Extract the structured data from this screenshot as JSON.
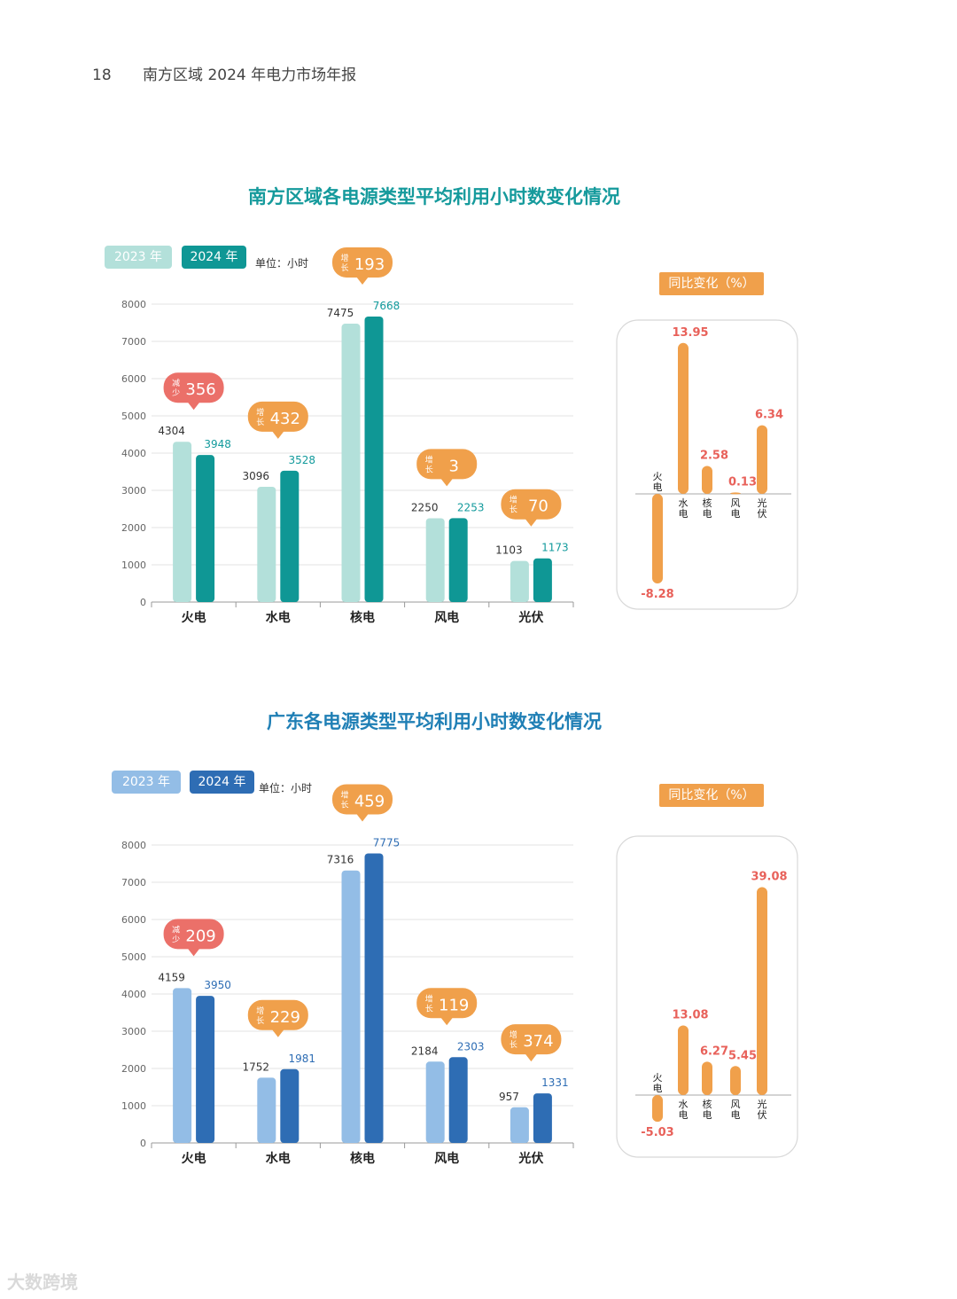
{
  "header": {
    "page_number": "18",
    "doc_title": "南方区域 2024 年电力市场年报"
  },
  "watermark": "大数跨境",
  "chart_data": [
    {
      "type": "bar",
      "title": "南方区域各电源类型平均利用小时数变化情况",
      "unit_label": "单位：小时",
      "categories": [
        "火电",
        "水电",
        "核电",
        "风电",
        "光伏"
      ],
      "series": [
        {
          "name": "2023 年",
          "values": [
            4304,
            3096,
            7475,
            2250,
            1103
          ],
          "color": "#b3e0da"
        },
        {
          "name": "2024 年",
          "values": [
            3948,
            3528,
            7668,
            2253,
            1173
          ],
          "color": "#0f9795"
        }
      ],
      "label_colors": [
        "#333333",
        "#129a9c"
      ],
      "ylim": [
        0,
        8000
      ],
      "yticks": [
        "0",
        "1000",
        "2000",
        "3000",
        "4000",
        "5000",
        "6000",
        "7000",
        "8000"
      ],
      "changes": [
        {
          "label": "减少",
          "value": "356",
          "color": "#eb7069"
        },
        {
          "label": "增长",
          "value": "432",
          "color": "#f0a04b"
        },
        {
          "label": "增长",
          "value": "193",
          "color": "#f0a04b"
        },
        {
          "label": "增长",
          "value": "3",
          "color": "#f0a04b"
        },
        {
          "label": "增长",
          "value": "70",
          "color": "#f0a04b"
        }
      ],
      "yoy": {
        "title": "同比变化（%）",
        "categories": [
          "火电",
          "水电",
          "核电",
          "风电",
          "光伏"
        ],
        "values": [
          -8.28,
          13.95,
          2.58,
          0.13,
          6.34
        ],
        "value_labels": [
          "-8.28",
          "13.95",
          "2.58",
          "0.13",
          "6.34"
        ],
        "color": "#f0a04b",
        "label_color": "#e8615a"
      }
    },
    {
      "type": "bar",
      "title": "广东各电源类型平均利用小时数变化情况",
      "unit_label": "单位：小时",
      "categories": [
        "火电",
        "水电",
        "核电",
        "风电",
        "光伏"
      ],
      "series": [
        {
          "name": "2023 年",
          "values": [
            4159,
            1752,
            7316,
            2184,
            957
          ],
          "color": "#93bde6"
        },
        {
          "name": "2024 年",
          "values": [
            3950,
            1981,
            7775,
            2303,
            1331
          ],
          "color": "#2e6db4"
        }
      ],
      "label_colors": [
        "#333333",
        "#2e6db4"
      ],
      "ylim": [
        0,
        8000
      ],
      "yticks": [
        "0",
        "1000",
        "2000",
        "3000",
        "4000",
        "5000",
        "6000",
        "7000",
        "8000"
      ],
      "changes": [
        {
          "label": "减少",
          "value": "209",
          "color": "#eb7069"
        },
        {
          "label": "增长",
          "value": "229",
          "color": "#f0a04b"
        },
        {
          "label": "增长",
          "value": "459",
          "color": "#f0a04b"
        },
        {
          "label": "增长",
          "value": "119",
          "color": "#f0a04b"
        },
        {
          "label": "增长",
          "value": "374",
          "color": "#f0a04b"
        }
      ],
      "yoy": {
        "title": "同比变化（%）",
        "categories": [
          "火电",
          "水电",
          "核电",
          "风电",
          "光伏"
        ],
        "values": [
          -5.03,
          13.08,
          6.27,
          5.45,
          39.08
        ],
        "value_labels": [
          "-5.03",
          "13.08",
          "6.27",
          "5.45",
          "39.08"
        ],
        "color": "#f0a04b",
        "label_color": "#e8615a"
      }
    }
  ]
}
